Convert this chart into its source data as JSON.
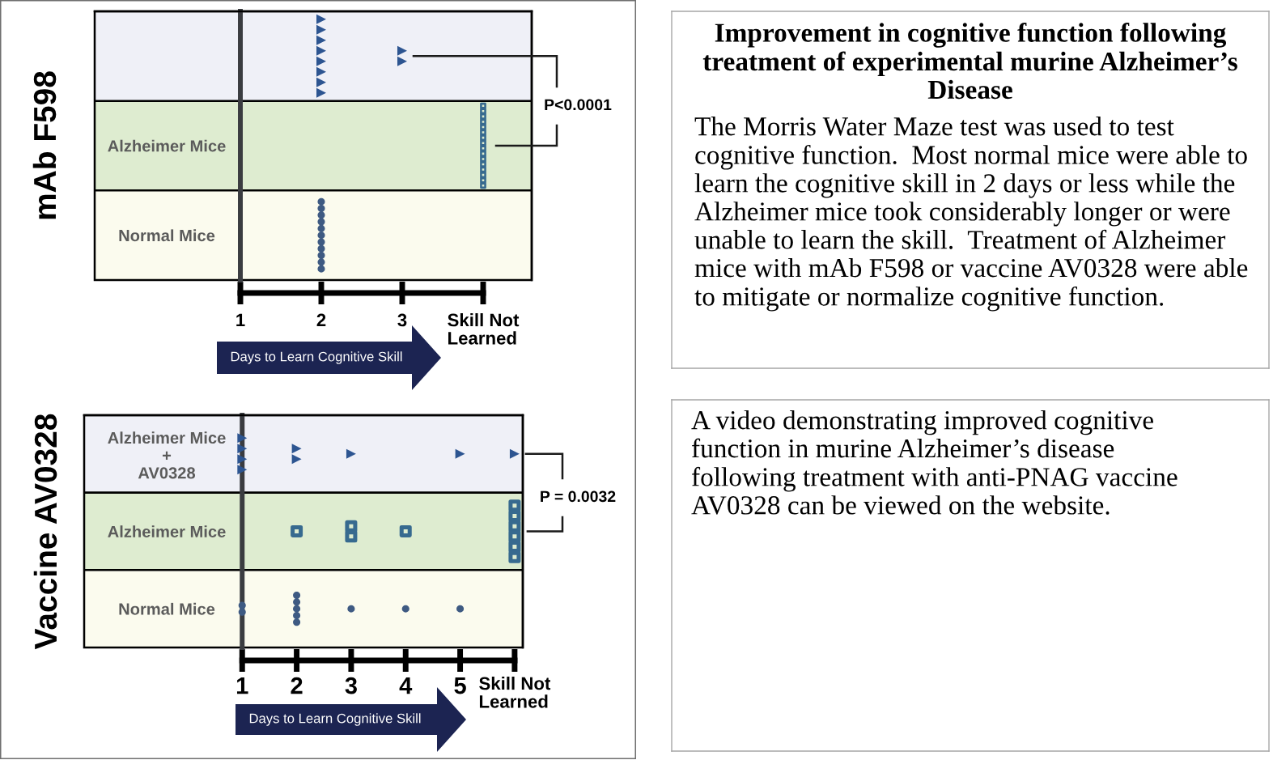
{
  "chart_data": [
    {
      "type": "scatter",
      "orientation": "horizontal",
      "ylabel": "mAb F598",
      "xlabel": "Days to Learn Cognitive Skill",
      "categories": [
        null,
        "Alzheimer Mice",
        "Normal Mice"
      ],
      "series": [
        {
          "color": "#2d5591",
          "marker": "triangle",
          "x": [
            null,
            null,
            null,
            null,
            null,
            null,
            null,
            null,
            null,
            null
          ],
          "values": [
            2,
            2,
            2,
            2,
            2,
            2,
            2,
            2,
            3,
            3
          ]
        },
        {
          "color": "#376a8f",
          "marker": "square",
          "x": [
            "Alzheimer Mice",
            "Alzheimer Mice",
            "Alzheimer Mice",
            "Alzheimer Mice",
            "Alzheimer Mice",
            "Alzheimer Mice",
            "Alzheimer Mice",
            "Alzheimer Mice",
            "Alzheimer Mice",
            "Alzheimer Mice",
            "Alzheimer Mice",
            "Alzheimer Mice",
            "Alzheimer Mice",
            "Alzheimer Mice",
            "Alzheimer Mice",
            "Alzheimer Mice"
          ],
          "values": [
            4,
            4,
            4,
            4,
            4,
            4,
            4,
            4,
            4,
            4,
            4,
            4,
            4,
            4,
            4,
            4
          ]
        },
        {
          "color": "#3e5a82",
          "marker": "circle",
          "x": [
            "Normal Mice",
            "Normal Mice",
            "Normal Mice",
            "Normal Mice",
            "Normal Mice",
            "Normal Mice",
            "Normal Mice",
            "Normal Mice",
            "Normal Mice",
            "Normal Mice",
            "Normal Mice"
          ],
          "values": [
            2,
            2,
            2,
            2,
            2,
            2,
            2,
            2,
            2,
            2,
            2
          ]
        }
      ],
      "xlim": [
        -0.8,
        4.6
      ],
      "xticks": [
        1,
        2,
        3,
        {
          "value": 4,
          "label": "Skill Not\nLearned"
        }
      ],
      "bands": [
        {
          "axis": "y",
          "from": "Alzheimer Mice",
          "to": "Alzheimer Mice",
          "color": "#deecd0"
        },
        {
          "axis": "y",
          "from": "Normal Mice",
          "to": "Normal Mice",
          "color": "#fbfbee"
        }
      ],
      "annotations": [
        "P<0.0001"
      ]
    },
    {
      "type": "scatter",
      "orientation": "horizontal",
      "ylabel": "Vaccine AV0328",
      "xlabel": "Days to Learn Cognitive Skill",
      "categories": [
        "Alzheimer Mice\n+\nAV0328",
        "Alzheimer Mice",
        "Normal Mice"
      ],
      "series": [
        {
          "color": "#2d5591",
          "marker": "triangle",
          "x": [
            "Alzheimer Mice\n+\nAV0328",
            "Alzheimer Mice\n+\nAV0328",
            "Alzheimer Mice\n+\nAV0328",
            "Alzheimer Mice\n+\nAV0328",
            "Alzheimer Mice\n+\nAV0328",
            "Alzheimer Mice\n+\nAV0328",
            "Alzheimer Mice\n+\nAV0328",
            "Alzheimer Mice\n+\nAV0328",
            "Alzheimer Mice\n+\nAV0328"
          ],
          "values": [
            1,
            1,
            1,
            1,
            2,
            2,
            3,
            5,
            6
          ]
        },
        {
          "color": "#376a8f",
          "marker": "square",
          "x": [
            "Alzheimer Mice",
            "Alzheimer Mice",
            "Alzheimer Mice",
            "Alzheimer Mice",
            "Alzheimer Mice",
            "Alzheimer Mice",
            "Alzheimer Mice",
            "Alzheimer Mice",
            "Alzheimer Mice",
            "Alzheimer Mice"
          ],
          "values": [
            2,
            3,
            3,
            4,
            6,
            6,
            6,
            6,
            6,
            6
          ]
        },
        {
          "color": "#3e5a82",
          "marker": "circle",
          "x": [
            "Normal Mice",
            "Normal Mice",
            "Normal Mice",
            "Normal Mice",
            "Normal Mice",
            "Normal Mice",
            "Normal Mice",
            "Normal Mice",
            "Normal Mice",
            "Normal Mice"
          ],
          "values": [
            1,
            1,
            2,
            2,
            2,
            2,
            2,
            3,
            4,
            5
          ]
        }
      ],
      "xlim": [
        -1.9,
        6.15
      ],
      "xticks": [
        1,
        2,
        3,
        4,
        5,
        {
          "value": 6,
          "label": "Skill Not\nLearned"
        }
      ],
      "bands": [
        {
          "axis": "y",
          "from": "Alzheimer Mice\n+\nAV0328",
          "to": "Alzheimer Mice\n+\nAV0328",
          "color": "#eff0f7"
        },
        {
          "axis": "y",
          "from": "Alzheimer Mice",
          "to": "Alzheimer Mice",
          "color": "#deecd0"
        },
        {
          "axis": "y",
          "from": "Normal Mice",
          "to": "Normal Mice",
          "color": "#fbfbee"
        }
      ],
      "annotations": [
        "P = 0.0032"
      ]
    },
    {
      "type": "other",
      "title": "Improvement in cognitive function following\ntreatment of experimental murine Alzheimer’s\nDisease",
      "annotations": [
        "The Morris Water Maze test was used to test\ncognitive function.  Most normal mice were able to\nlearn the cognitive skill in 2 days or less while the\nAlzheimer mice took considerably longer or were\nunable to learn the skill.  Treatment of Alzheimer\nmice with mAb F598 or vaccine AV0328 were able\nto mitigate or normalize cognitive function."
      ]
    },
    {
      "type": "other",
      "annotations": [
        "A video demonstrating improved cognitive\nfunction in murine Alzheimer’s disease\nfollowing treatment with anti-PNAG vaccine\nAV0328 can be viewed on the website."
      ]
    }
  ]
}
